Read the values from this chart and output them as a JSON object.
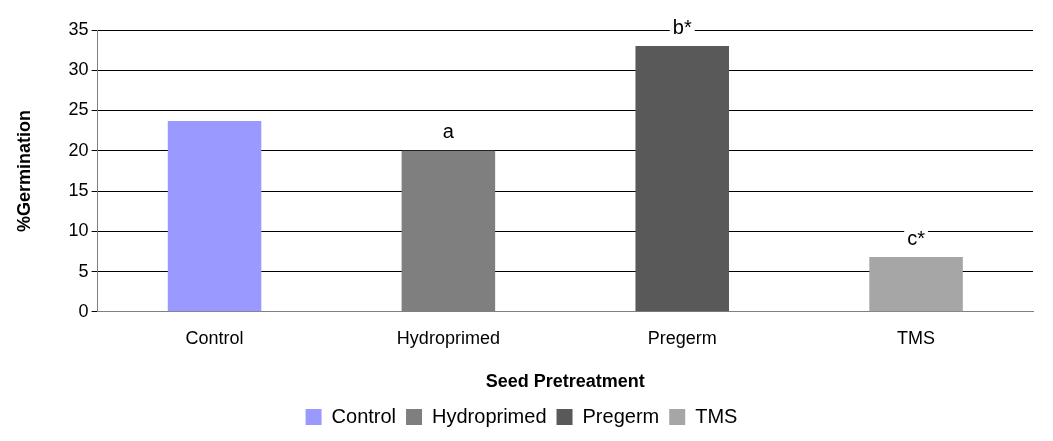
{
  "chart_data": {
    "type": "bar",
    "xlabel": "Seed Pretreatment",
    "ylabel": "%Germination",
    "categories": [
      "Control",
      "Hydroprimed",
      "Pregerm",
      "TMS"
    ],
    "series": [
      {
        "name": "Control",
        "color": "#9999ff",
        "values": [
          23.7,
          null,
          null,
          null
        ]
      },
      {
        "name": "Hydroprimed",
        "color": "#7f7f7f",
        "values": [
          null,
          20,
          null,
          null
        ]
      },
      {
        "name": "Pregerm",
        "color": "#595959",
        "values": [
          null,
          null,
          33,
          null
        ]
      },
      {
        "name": "TMS",
        "color": "#a6a6a6",
        "values": [
          null,
          null,
          null,
          6.8
        ]
      }
    ],
    "ylim": [
      0,
      35
    ],
    "yticks": [
      0,
      5,
      10,
      15,
      20,
      25,
      30,
      35
    ],
    "grid": "y",
    "legend": "bottom",
    "annotations": [
      {
        "text": "a",
        "x": "Hydroprimed",
        "y": 20
      },
      {
        "text": "b*",
        "x": "Pregerm",
        "y": 33
      },
      {
        "text": "c*",
        "x": "TMS",
        "y": 6.8
      }
    ]
  }
}
